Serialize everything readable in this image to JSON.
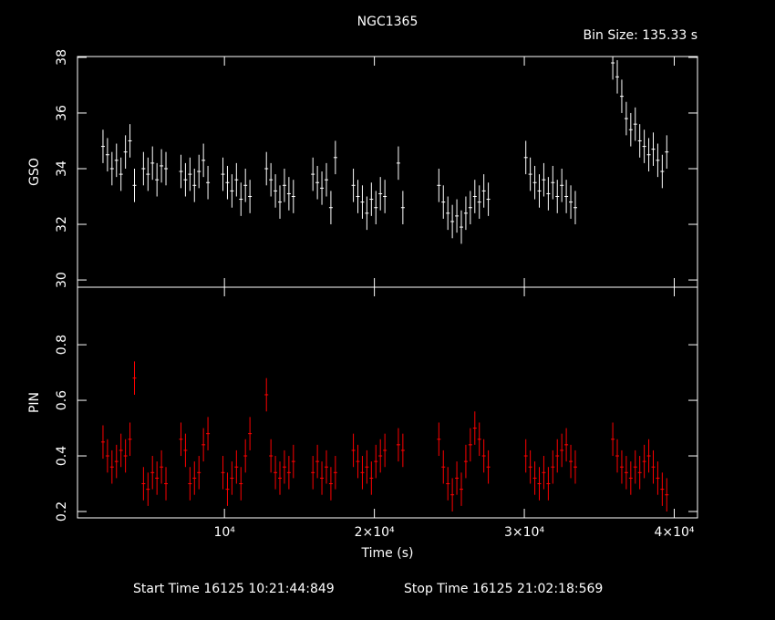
{
  "chart_data": [
    {
      "type": "errorbar",
      "title": "NGC1365",
      "annotation": "Bin Size: 135.33 s",
      "ylabel": "GSO",
      "color": "#ffffff",
      "x": [
        1900,
        2200,
        2500,
        2800,
        3100,
        3400,
        3700,
        4000,
        4600,
        4900,
        5200,
        5500,
        5800,
        6100,
        7100,
        7400,
        7700,
        8000,
        8300,
        8600,
        8900,
        9900,
        10200,
        10500,
        10800,
        11100,
        11400,
        11700,
        12800,
        13100,
        13400,
        13700,
        14000,
        14300,
        14600,
        15900,
        16200,
        16500,
        16800,
        17100,
        17400,
        18600,
        18900,
        19200,
        19500,
        19800,
        20100,
        20400,
        20700,
        21600,
        21900,
        24300,
        24600,
        24900,
        25200,
        25500,
        25800,
        26100,
        26400,
        26700,
        27000,
        27300,
        27600,
        30100,
        30400,
        30700,
        31000,
        31300,
        31600,
        31900,
        32200,
        32500,
        32800,
        33100,
        33400,
        35900,
        36200,
        36500,
        36800,
        37100,
        37400,
        37700,
        38000,
        38300,
        38600,
        38900,
        39200,
        39500
      ],
      "values": [
        34.8,
        34.5,
        34.0,
        34.3,
        33.8,
        34.6,
        35.0,
        33.4,
        34.0,
        33.8,
        34.2,
        33.6,
        34.1,
        34.0,
        33.9,
        33.6,
        33.8,
        33.4,
        33.9,
        34.3,
        33.5,
        33.8,
        33.5,
        33.2,
        33.6,
        32.9,
        33.4,
        33.0,
        34.0,
        33.6,
        33.2,
        32.8,
        33.4,
        33.1,
        33.0,
        33.8,
        33.5,
        33.3,
        33.6,
        32.6,
        34.4,
        33.4,
        33.0,
        32.8,
        32.4,
        32.9,
        32.6,
        33.1,
        33.0,
        34.2,
        32.6,
        33.4,
        32.8,
        32.4,
        32.1,
        32.3,
        31.9,
        32.4,
        32.6,
        33.0,
        32.8,
        33.2,
        32.9,
        34.4,
        33.8,
        33.5,
        33.2,
        33.6,
        33.1,
        33.5,
        33.0,
        33.4,
        33.0,
        32.8,
        32.6,
        37.8,
        37.3,
        36.6,
        35.8,
        35.4,
        35.6,
        35.0,
        34.8,
        34.5,
        34.7,
        34.3,
        33.9,
        34.6
      ],
      "errors": [
        0.6,
        0.6,
        0.6,
        0.6,
        0.6,
        0.6,
        0.6,
        0.6,
        0.6,
        0.6,
        0.6,
        0.6,
        0.6,
        0.6,
        0.6,
        0.6,
        0.6,
        0.6,
        0.6,
        0.6,
        0.6,
        0.6,
        0.6,
        0.6,
        0.6,
        0.6,
        0.6,
        0.6,
        0.6,
        0.6,
        0.6,
        0.6,
        0.6,
        0.6,
        0.6,
        0.6,
        0.6,
        0.6,
        0.6,
        0.6,
        0.6,
        0.6,
        0.6,
        0.6,
        0.6,
        0.6,
        0.6,
        0.6,
        0.6,
        0.6,
        0.6,
        0.6,
        0.6,
        0.6,
        0.6,
        0.6,
        0.6,
        0.6,
        0.6,
        0.6,
        0.6,
        0.6,
        0.6,
        0.6,
        0.6,
        0.6,
        0.6,
        0.6,
        0.6,
        0.6,
        0.6,
        0.6,
        0.6,
        0.6,
        0.6,
        0.6,
        0.6,
        0.6,
        0.6,
        0.6,
        0.6,
        0.6,
        0.6,
        0.6,
        0.6,
        0.6,
        0.6,
        0.6
      ],
      "xlim": [
        200,
        41550
      ],
      "ylim": [
        29.74,
        38.03
      ],
      "yticks": [
        30,
        32,
        34,
        36,
        38
      ]
    },
    {
      "type": "errorbar",
      "ylabel": "PIN",
      "xlabel": "Time (s)",
      "color": "#ff0000",
      "x": [
        1900,
        2200,
        2500,
        2800,
        3100,
        3400,
        3700,
        4000,
        4600,
        4900,
        5200,
        5500,
        5800,
        6100,
        7100,
        7400,
        7700,
        8000,
        8300,
        8600,
        8900,
        9900,
        10200,
        10500,
        10800,
        11100,
        11400,
        11700,
        12800,
        13100,
        13400,
        13700,
        14000,
        14300,
        14600,
        15900,
        16200,
        16500,
        16800,
        17100,
        17400,
        18600,
        18900,
        19200,
        19500,
        19800,
        20100,
        20400,
        20700,
        21600,
        21900,
        24300,
        24600,
        24900,
        25200,
        25500,
        25800,
        26100,
        26400,
        26700,
        27000,
        27300,
        27600,
        30100,
        30400,
        30700,
        31000,
        31300,
        31600,
        31900,
        32200,
        32500,
        32800,
        33100,
        33400,
        35900,
        36200,
        36500,
        36800,
        37100,
        37400,
        37700,
        38000,
        38300,
        38600,
        38900,
        39200,
        39500
      ],
      "values": [
        0.45,
        0.4,
        0.36,
        0.38,
        0.42,
        0.4,
        0.46,
        0.68,
        0.3,
        0.28,
        0.34,
        0.32,
        0.36,
        0.3,
        0.46,
        0.42,
        0.3,
        0.32,
        0.34,
        0.44,
        0.48,
        0.34,
        0.28,
        0.32,
        0.36,
        0.3,
        0.4,
        0.48,
        0.62,
        0.4,
        0.34,
        0.32,
        0.36,
        0.34,
        0.38,
        0.34,
        0.38,
        0.32,
        0.36,
        0.3,
        0.34,
        0.42,
        0.38,
        0.34,
        0.36,
        0.32,
        0.38,
        0.4,
        0.42,
        0.44,
        0.42,
        0.46,
        0.36,
        0.3,
        0.26,
        0.32,
        0.28,
        0.38,
        0.44,
        0.5,
        0.46,
        0.4,
        0.36,
        0.4,
        0.36,
        0.32,
        0.3,
        0.34,
        0.3,
        0.36,
        0.4,
        0.42,
        0.44,
        0.38,
        0.36,
        0.46,
        0.4,
        0.36,
        0.34,
        0.32,
        0.36,
        0.34,
        0.38,
        0.4,
        0.36,
        0.32,
        0.28,
        0.26
      ],
      "errors": [
        0.06,
        0.06,
        0.06,
        0.06,
        0.06,
        0.06,
        0.06,
        0.06,
        0.06,
        0.06,
        0.06,
        0.06,
        0.06,
        0.06,
        0.06,
        0.06,
        0.06,
        0.06,
        0.06,
        0.06,
        0.06,
        0.06,
        0.06,
        0.06,
        0.06,
        0.06,
        0.06,
        0.06,
        0.06,
        0.06,
        0.06,
        0.06,
        0.06,
        0.06,
        0.06,
        0.06,
        0.06,
        0.06,
        0.06,
        0.06,
        0.06,
        0.06,
        0.06,
        0.06,
        0.06,
        0.06,
        0.06,
        0.06,
        0.06,
        0.06,
        0.06,
        0.06,
        0.06,
        0.06,
        0.06,
        0.06,
        0.06,
        0.06,
        0.06,
        0.06,
        0.06,
        0.06,
        0.06,
        0.06,
        0.06,
        0.06,
        0.06,
        0.06,
        0.06,
        0.06,
        0.06,
        0.06,
        0.06,
        0.06,
        0.06,
        0.06,
        0.06,
        0.06,
        0.06,
        0.06,
        0.06,
        0.06,
        0.06,
        0.06,
        0.06,
        0.06,
        0.06,
        0.06
      ],
      "xlim": [
        200,
        41550
      ],
      "ylim": [
        0.177,
        1.007
      ],
      "yticks": [
        0.2,
        0.4,
        0.6,
        0.8
      ],
      "xticks": [
        {
          "value": 10000,
          "label": "10⁴"
        },
        {
          "value": 20000,
          "label": "2×10⁴"
        },
        {
          "value": 30000,
          "label": "3×10⁴"
        },
        {
          "value": 40000,
          "label": "4×10⁴"
        }
      ]
    }
  ],
  "footer": {
    "start": "Start Time 16125 10:21:44:849",
    "stop": "Stop Time 16125 21:02:18:569"
  }
}
